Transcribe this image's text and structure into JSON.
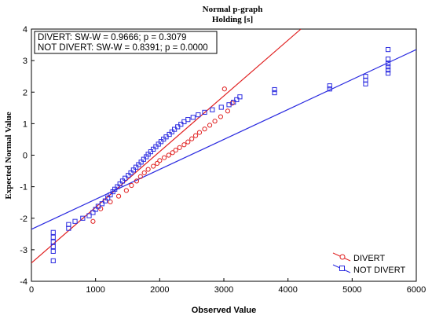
{
  "chart_data": {
    "type": "scatter",
    "title": "Normal p-graph",
    "subtitle": "Holding [s]",
    "xlabel": "Observed Value",
    "ylabel": "Expected Normal Value",
    "xlim": [
      0,
      6000
    ],
    "ylim": [
      -4,
      4
    ],
    "x_ticks": [
      0,
      1000,
      2000,
      3000,
      4000,
      5000,
      6000
    ],
    "y_ticks": [
      -4,
      -3,
      -2,
      -1,
      0,
      1,
      2,
      3,
      4
    ],
    "grid": false,
    "stats_lines": [
      "DIVERT:  SW-W = 0.9666; p = 0.3079",
      "NOT DIVERT:  SW-W = 0.8391; p = 0.0000"
    ],
    "legend_position": "bottom-right",
    "series": [
      {
        "name": "DIVERT",
        "color": "#e02020",
        "marker": "circle",
        "fit_line": [
          [
            0,
            -3.42
          ],
          [
            4200,
            4.0
          ]
        ],
        "points": [
          [
            960,
            -2.1
          ],
          [
            1080,
            -1.7
          ],
          [
            1230,
            -1.48
          ],
          [
            1360,
            -1.3
          ],
          [
            1480,
            -1.12
          ],
          [
            1560,
            -0.96
          ],
          [
            1640,
            -0.82
          ],
          [
            1700,
            -0.68
          ],
          [
            1760,
            -0.56
          ],
          [
            1820,
            -0.45
          ],
          [
            1900,
            -0.35
          ],
          [
            1960,
            -0.26
          ],
          [
            2000,
            -0.17
          ],
          [
            2070,
            -0.08
          ],
          [
            2140,
            0.0
          ],
          [
            2200,
            0.08
          ],
          [
            2250,
            0.16
          ],
          [
            2310,
            0.24
          ],
          [
            2380,
            0.33
          ],
          [
            2440,
            0.42
          ],
          [
            2500,
            0.52
          ],
          [
            2560,
            0.62
          ],
          [
            2620,
            0.72
          ],
          [
            2700,
            0.83
          ],
          [
            2780,
            0.95
          ],
          [
            2860,
            1.08
          ],
          [
            2950,
            1.22
          ],
          [
            3060,
            1.4
          ],
          [
            3130,
            1.65
          ],
          [
            3010,
            2.1
          ]
        ]
      },
      {
        "name": "NOT DIVERT",
        "color": "#2a2ae0",
        "marker": "square",
        "fit_line": [
          [
            0,
            -2.35
          ],
          [
            6000,
            3.35
          ]
        ],
        "points": [
          [
            340,
            -3.35
          ],
          [
            340,
            -3.05
          ],
          [
            340,
            -2.9
          ],
          [
            340,
            -2.75
          ],
          [
            340,
            -2.6
          ],
          [
            340,
            -2.45
          ],
          [
            580,
            -2.32
          ],
          [
            580,
            -2.2
          ],
          [
            680,
            -2.1
          ],
          [
            800,
            -2.0
          ],
          [
            900,
            -1.92
          ],
          [
            960,
            -1.82
          ],
          [
            1000,
            -1.72
          ],
          [
            1040,
            -1.62
          ],
          [
            1100,
            -1.54
          ],
          [
            1150,
            -1.45
          ],
          [
            1190,
            -1.36
          ],
          [
            1230,
            -1.26
          ],
          [
            1270,
            -1.16
          ],
          [
            1300,
            -1.08
          ],
          [
            1340,
            -1.0
          ],
          [
            1380,
            -0.91
          ],
          [
            1420,
            -0.82
          ],
          [
            1460,
            -0.73
          ],
          [
            1510,
            -0.64
          ],
          [
            1550,
            -0.56
          ],
          [
            1590,
            -0.47
          ],
          [
            1630,
            -0.38
          ],
          [
            1670,
            -0.3
          ],
          [
            1710,
            -0.22
          ],
          [
            1750,
            -0.13
          ],
          [
            1790,
            -0.05
          ],
          [
            1820,
            0.03
          ],
          [
            1860,
            0.11
          ],
          [
            1900,
            0.19
          ],
          [
            1940,
            0.27
          ],
          [
            1980,
            0.35
          ],
          [
            2020,
            0.43
          ],
          [
            2060,
            0.51
          ],
          [
            2100,
            0.58
          ],
          [
            2150,
            0.66
          ],
          [
            2190,
            0.74
          ],
          [
            2230,
            0.82
          ],
          [
            2280,
            0.9
          ],
          [
            2330,
            0.98
          ],
          [
            2380,
            1.06
          ],
          [
            2440,
            1.13
          ],
          [
            2520,
            1.2
          ],
          [
            2600,
            1.28
          ],
          [
            2700,
            1.36
          ],
          [
            2820,
            1.44
          ],
          [
            2960,
            1.52
          ],
          [
            3080,
            1.6
          ],
          [
            3150,
            1.68
          ],
          [
            3200,
            1.76
          ],
          [
            3250,
            1.85
          ],
          [
            3790,
            1.98
          ],
          [
            3790,
            2.08
          ],
          [
            4650,
            2.1
          ],
          [
            4650,
            2.2
          ],
          [
            5210,
            2.26
          ],
          [
            5210,
            2.38
          ],
          [
            5210,
            2.5
          ],
          [
            5560,
            2.6
          ],
          [
            5560,
            2.7
          ],
          [
            5560,
            2.8
          ],
          [
            5560,
            2.9
          ],
          [
            5560,
            3.05
          ],
          [
            5560,
            3.35
          ]
        ]
      }
    ]
  }
}
